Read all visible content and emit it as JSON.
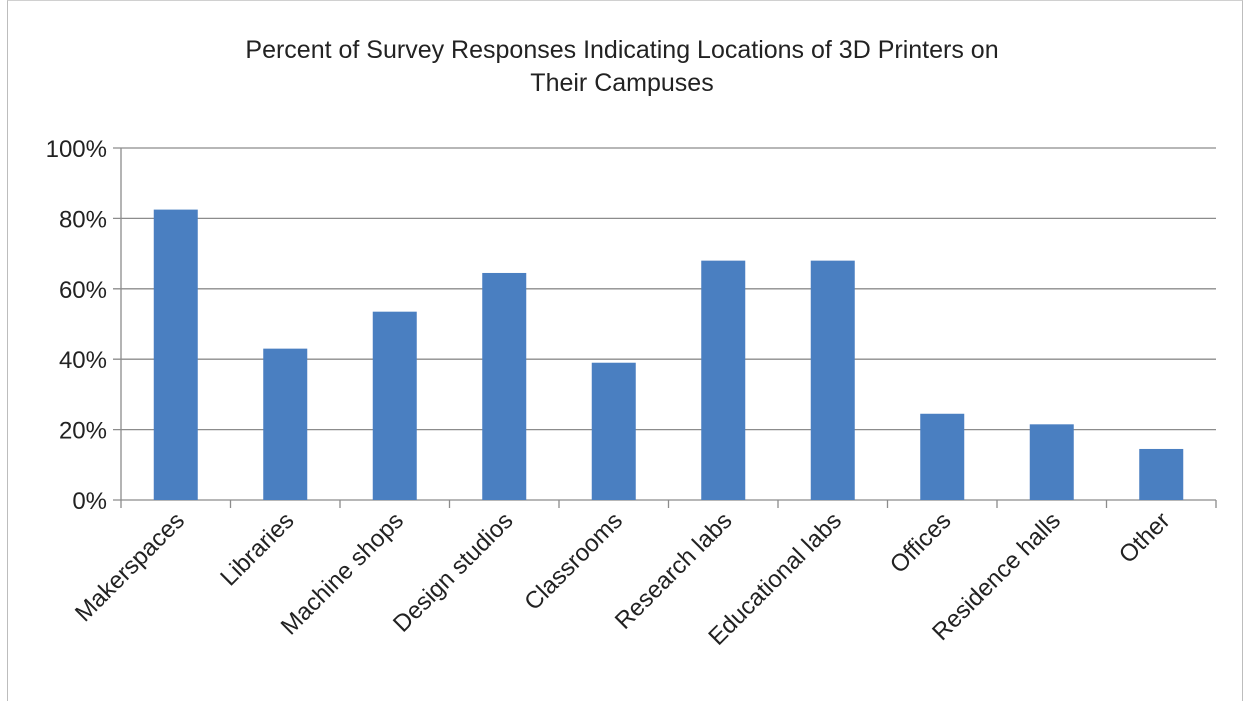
{
  "chart_data": {
    "type": "bar",
    "title_line1": "Percent of Survey Responses Indicating Locations of 3D Printers on",
    "title_line2": "Their Campuses",
    "categories": [
      "Makerspaces",
      "Libraries",
      "Machine shops",
      "Design studios",
      "Classrooms",
      "Research labs",
      "Educational labs",
      "Offices",
      "Residence halls",
      "Other"
    ],
    "values": [
      82.5,
      43,
      53.5,
      64.5,
      39,
      68,
      68,
      24.5,
      21.5,
      14.5
    ],
    "ylim": [
      0,
      100
    ],
    "yticks": [
      0,
      20,
      40,
      60,
      80,
      100
    ],
    "ytick_labels": [
      "0%",
      "20%",
      "40%",
      "60%",
      "80%",
      "100%"
    ],
    "grid": true,
    "bar_color": "#4a7fc1",
    "grid_color": "#8c8c8c"
  }
}
